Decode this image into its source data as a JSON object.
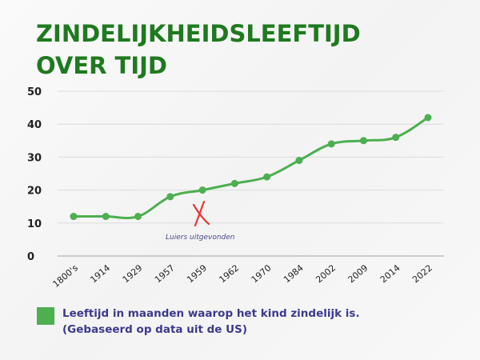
{
  "title": {
    "line1": "ZINDELIJKHEIDSLEEFTIJD",
    "line2": "OVER TIJD"
  },
  "legend": {
    "color": "#4caf50",
    "line1": "Leeftijd in maanden waarop het kind zindelijk is.",
    "line2": "(Gebaseerd op data uit de US)"
  },
  "annotation": {
    "text": "Luiers uitgevonden",
    "marker": "X",
    "marker_color": "#e53935"
  },
  "colors": {
    "title": "#1f7a1f",
    "line": "#4caf50",
    "legend_text": "#3d3a8c"
  },
  "chart_data": {
    "type": "line",
    "title": "ZINDELIJKHEIDSLEEFTIJD OVER TIJD",
    "xlabel": "",
    "ylabel": "",
    "categories": [
      "1800's",
      "1914",
      "1929",
      "1957",
      "1959",
      "1962",
      "1970",
      "1984",
      "2002",
      "2009",
      "2014",
      "2022"
    ],
    "series": [
      {
        "name": "Leeftijd in maanden waarop het kind zindelijk is.",
        "values": [
          12,
          12,
          12,
          18,
          20,
          22,
          24,
          29,
          34,
          35,
          36,
          42
        ]
      }
    ],
    "ylim": [
      0,
      50
    ],
    "yticks": [
      0,
      10,
      20,
      30,
      40,
      50
    ],
    "grid": true,
    "legend_position": "bottom",
    "annotations": [
      {
        "text": "Luiers uitgevonden",
        "near": "1959",
        "marker": "X"
      }
    ]
  }
}
